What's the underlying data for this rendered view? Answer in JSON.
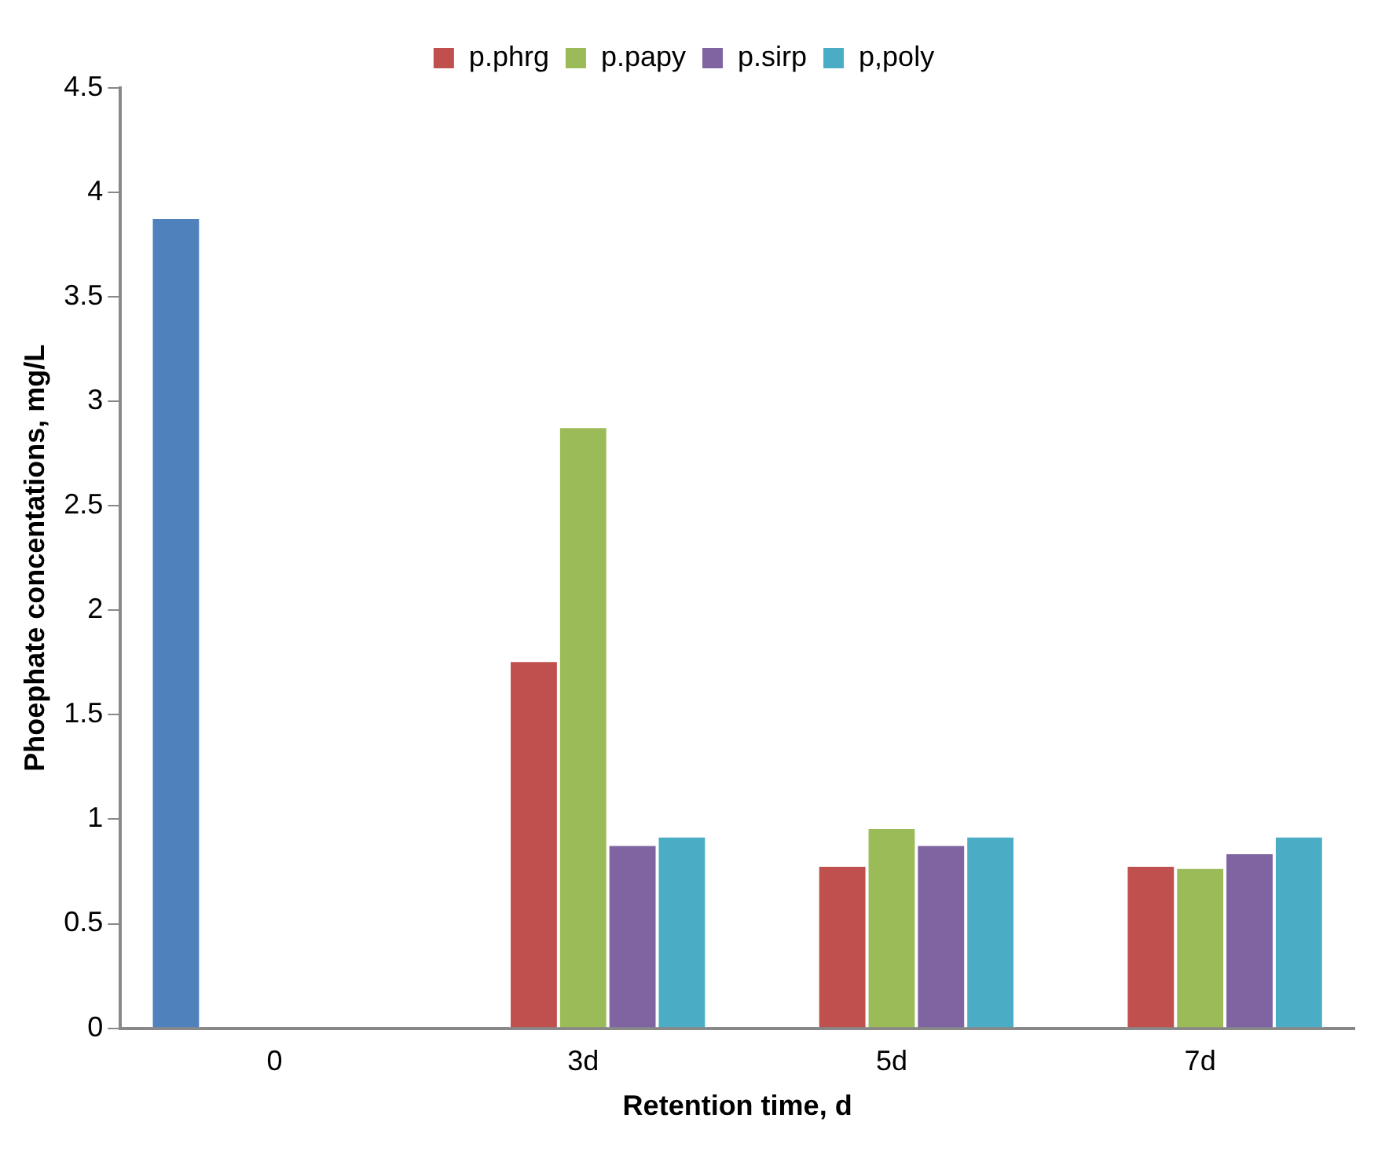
{
  "chart_data": {
    "type": "bar",
    "xlabel": "Retention time, d",
    "ylabel": "Phoephate concentations, mg/L",
    "categories": [
      "0",
      "3d",
      "5d",
      "7d"
    ],
    "series": [
      {
        "color": "#4f81bd",
        "values": [
          3.88,
          null,
          null,
          null
        ]
      },
      {
        "name": "p.phrg",
        "color": "#c0504d",
        "values": [
          null,
          1.76,
          0.78,
          0.78
        ]
      },
      {
        "name": "p.papy",
        "color": "#9bbb59",
        "values": [
          null,
          2.88,
          0.96,
          0.77
        ]
      },
      {
        "name": "p.sirp",
        "color": "#8064a2",
        "values": [
          null,
          0.88,
          0.88,
          0.84
        ]
      },
      {
        "name": "p,poly",
        "color": "#4bacc6",
        "values": [
          null,
          0.92,
          0.92,
          0.92
        ]
      }
    ],
    "ylim": [
      0,
      4.5
    ],
    "yticks": [
      0,
      0.5,
      1,
      1.5,
      2,
      2.5,
      3,
      3.5,
      4,
      4.5
    ],
    "grid": false,
    "legend": "top"
  }
}
